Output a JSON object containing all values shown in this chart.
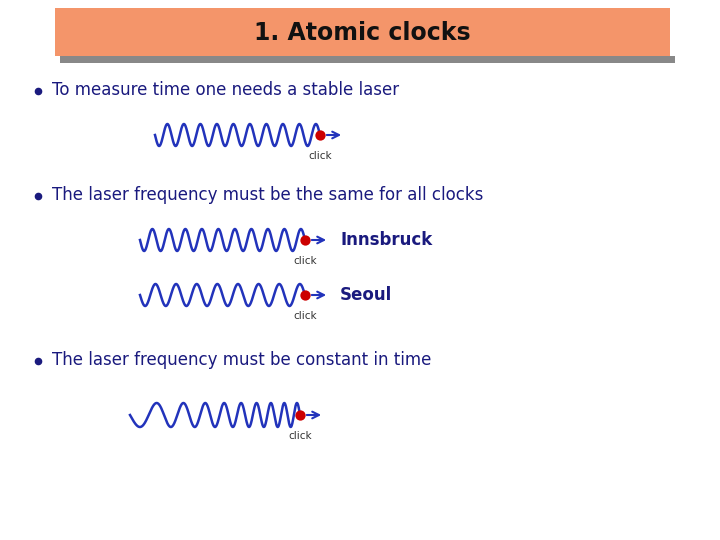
{
  "title": "1. Atomic clocks",
  "title_bg_color": "#F4956A",
  "title_font_color": "#111111",
  "bg_color": "#ffffff",
  "wave_color": "#2233bb",
  "dot_color": "#cc0000",
  "arrow_color": "#2233bb",
  "text_color": "#1a1a7e",
  "bullet_color": "#1a1a7e",
  "bullet1": "To measure time one needs a stable laser",
  "bullet2": "The laser frequency must be the same for all clocks",
  "bullet3": "The laser frequency must be constant in time",
  "label_innsbruck": "Innsbruck",
  "label_seoul": "Seoul",
  "label_click": "click",
  "shadow_color": "#888888"
}
